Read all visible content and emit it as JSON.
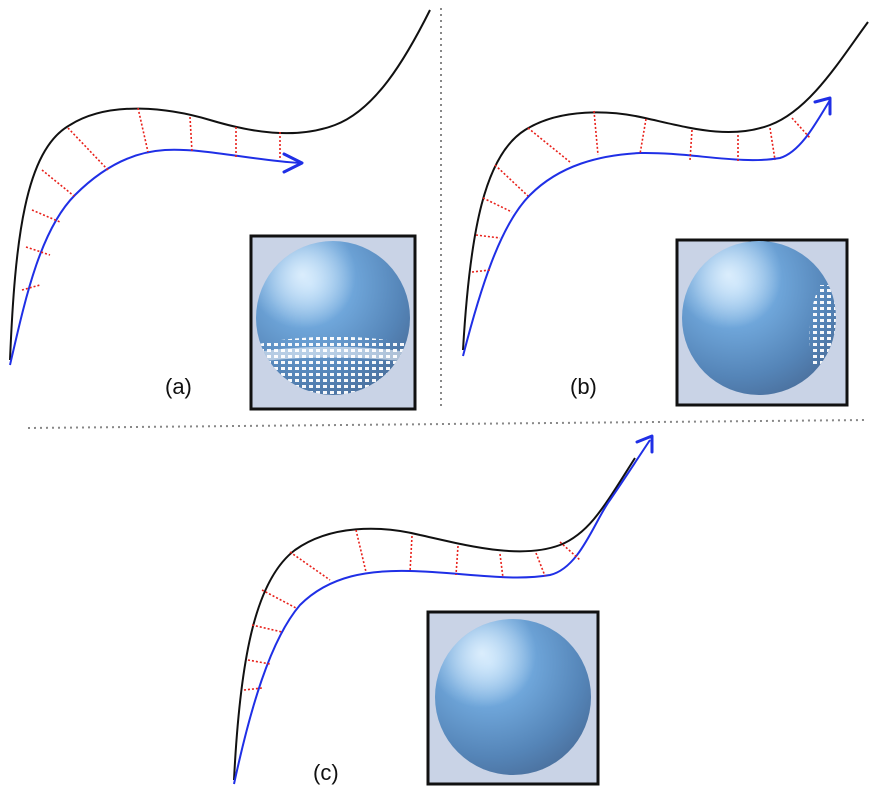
{
  "panels": [
    {
      "label": "(a)",
      "inset_artifact": "bottom"
    },
    {
      "label": "(b)",
      "inset_artifact": "right"
    },
    {
      "label": "(c)",
      "inset_artifact": "none"
    }
  ],
  "colors": {
    "target_curve": "#111111",
    "tracked_curve": "#1f2fe6",
    "error_lines": "#e8201a",
    "divider": "#888888",
    "inset_background": "#c9d3e6",
    "sphere": "#6fa6da"
  }
}
